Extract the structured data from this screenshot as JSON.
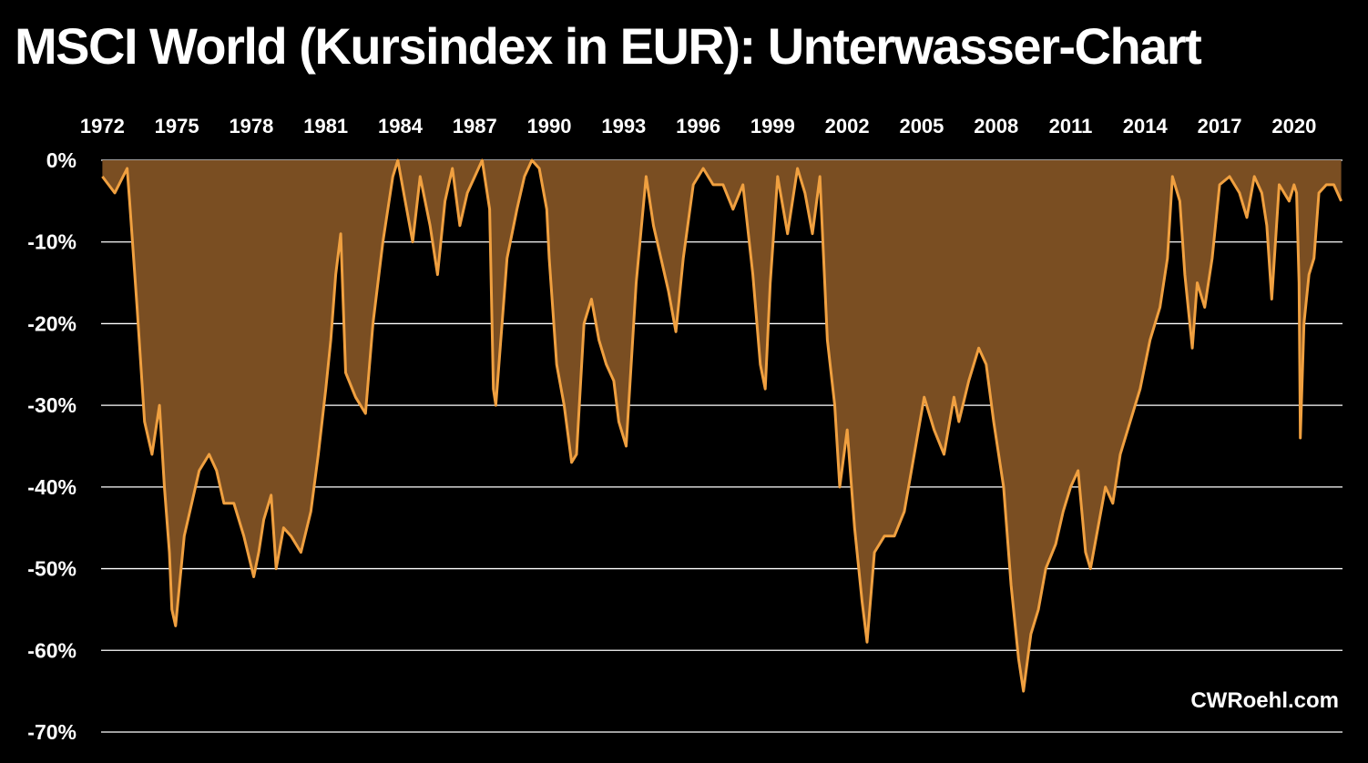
{
  "title": "MSCI World (Kursindex in EUR): Unterwasser-Chart",
  "credit": "CWRoehl.com",
  "chart_data": {
    "type": "area",
    "title": "MSCI World (Kursindex in EUR): Unterwasser-Chart",
    "xlabel": "",
    "ylabel": "",
    "x_axis_position": "top",
    "x_ticks": [
      "1972",
      "1975",
      "1978",
      "1981",
      "1984",
      "1987",
      "1990",
      "1993",
      "1996",
      "1999",
      "2002",
      "2005",
      "2008",
      "2011",
      "2014",
      "2017",
      "2020"
    ],
    "y_ticks": [
      "0%",
      "-10%",
      "-20%",
      "-30%",
      "-40%",
      "-50%",
      "-60%",
      "-70%"
    ],
    "xlim": [
      1971.95,
      2021.95
    ],
    "ylim": [
      -70,
      0
    ],
    "grid": "horizontal",
    "legend": "none",
    "colors": {
      "line": "#F0A040",
      "fill": "#7A4E22",
      "grid": "#FFFFFF",
      "background": "#000000"
    },
    "series": [
      {
        "x": [
          1972.0,
          1972.5,
          1973.0,
          1973.1,
          1973.4,
          1973.7,
          1974.0,
          1974.3,
          1974.5,
          1974.7,
          1974.8,
          1974.95,
          1975.3,
          1975.6,
          1975.9,
          1976.3,
          1976.6,
          1976.9,
          1977.3,
          1977.7,
          1978.1,
          1978.3,
          1978.5,
          1978.8,
          1979.0,
          1979.3,
          1979.6,
          1980.0,
          1980.4,
          1980.7,
          1981.0,
          1981.2,
          1981.4,
          1981.6,
          1981.8,
          1982.2,
          1982.6,
          1982.9,
          1983.3,
          1983.7,
          1983.9,
          1984.2,
          1984.5,
          1984.8,
          1985.2,
          1985.5,
          1985.8,
          1986.1,
          1986.4,
          1986.7,
          1987.0,
          1987.3,
          1987.6,
          1987.75,
          1987.85,
          1988.3,
          1988.7,
          1989.0,
          1989.3,
          1989.6,
          1989.9,
          1990.0,
          1990.3,
          1990.6,
          1990.9,
          1991.1,
          1991.4,
          1991.7,
          1992.0,
          1992.3,
          1992.6,
          1992.8,
          1993.1,
          1993.5,
          1993.9,
          1994.2,
          1994.5,
          1994.8,
          1995.1,
          1995.4,
          1995.8,
          1996.2,
          1996.6,
          1997.0,
          1997.4,
          1997.8,
          1998.2,
          1998.5,
          1998.7,
          1998.9,
          1999.2,
          1999.6,
          2000.0,
          2000.3,
          2000.6,
          2000.9,
          2001.2,
          2001.5,
          2001.7,
          2002.0,
          2002.3,
          2002.6,
          2002.8,
          2003.1,
          2003.5,
          2003.9,
          2004.3,
          2004.7,
          2005.1,
          2005.5,
          2005.9,
          2006.3,
          2006.5,
          2006.9,
          2007.3,
          2007.6,
          2007.9,
          2008.3,
          2008.6,
          2008.9,
          2009.1,
          2009.4,
          2009.7,
          2010.0,
          2010.4,
          2010.7,
          2011.0,
          2011.3,
          2011.6,
          2011.8,
          2012.1,
          2012.4,
          2012.7,
          2013.0,
          2013.4,
          2013.8,
          2014.2,
          2014.6,
          2014.9,
          2015.1,
          2015.4,
          2015.6,
          2015.9,
          2016.1,
          2016.4,
          2016.7,
          2017.0,
          2017.4,
          2017.8,
          2018.1,
          2018.4,
          2018.7,
          2018.9,
          2019.1,
          2019.4,
          2019.8,
          2020.0,
          2020.1,
          2020.2,
          2020.25,
          2020.4,
          2020.6,
          2020.8,
          2021.0,
          2021.3,
          2021.6,
          2021.9
        ],
        "y": [
          -2,
          -4,
          -1,
          -5,
          -18,
          -32,
          -36,
          -30,
          -40,
          -48,
          -55,
          -57,
          -46,
          -42,
          -38,
          -36,
          -38,
          -42,
          -42,
          -46,
          -51,
          -48,
          -44,
          -41,
          -50,
          -45,
          -46,
          -48,
          -43,
          -36,
          -28,
          -22,
          -14,
          -9,
          -26,
          -29,
          -31,
          -20,
          -10,
          -2,
          0,
          -5,
          -10,
          -2,
          -8,
          -14,
          -5,
          -1,
          -8,
          -4,
          -2,
          0,
          -6,
          -28,
          -30,
          -12,
          -6,
          -2,
          0,
          -1,
          -6,
          -12,
          -25,
          -30,
          -37,
          -36,
          -20,
          -17,
          -22,
          -25,
          -27,
          -32,
          -35,
          -15,
          -2,
          -8,
          -12,
          -16,
          -21,
          -12,
          -3,
          -1,
          -3,
          -3,
          -6,
          -3,
          -14,
          -25,
          -28,
          -15,
          -2,
          -9,
          -1,
          -4,
          -9,
          -2,
          -22,
          -30,
          -40,
          -33,
          -45,
          -54,
          -59,
          -48,
          -46,
          -46,
          -43,
          -36,
          -29,
          -33,
          -36,
          -29,
          -32,
          -27,
          -23,
          -25,
          -32,
          -40,
          -52,
          -61,
          -65,
          -58,
          -55,
          -50,
          -47,
          -43,
          -40,
          -38,
          -48,
          -50,
          -45,
          -40,
          -42,
          -36,
          -32,
          -28,
          -22,
          -18,
          -12,
          -2,
          -5,
          -14,
          -23,
          -15,
          -18,
          -12,
          -3,
          -2,
          -4,
          -7,
          -2,
          -4,
          -8,
          -17,
          -3,
          -5,
          -3,
          -4,
          -15,
          -34,
          -20,
          -14,
          -12,
          -4,
          -3,
          -3,
          -5
        ]
      }
    ]
  }
}
